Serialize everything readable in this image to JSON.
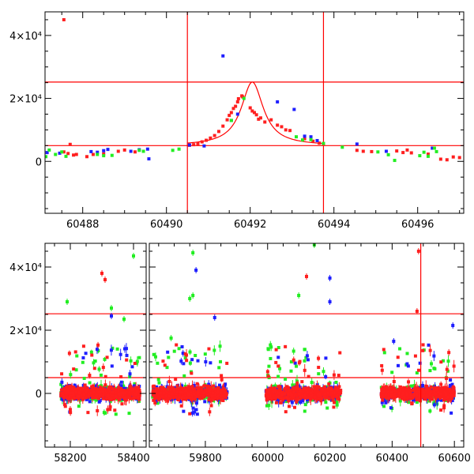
{
  "colors": {
    "red": "#ff1f1f",
    "blue": "#1f1fff",
    "green": "#22ee22",
    "line": "#ff0000"
  },
  "chart_data": [
    {
      "type": "scatter",
      "title": "",
      "xlabel": "",
      "ylabel": "",
      "xlim": [
        60487.1,
        60497.1
      ],
      "ylim": [
        -16500,
        47500
      ],
      "x_ticks": [
        "60488",
        "60490",
        "60492",
        "60494",
        "60496"
      ],
      "y_ticks": [
        "4×10⁴",
        "2×10⁴",
        "0"
      ],
      "y_tick_values": [
        40000,
        20000,
        0
      ],
      "hlines": [
        25200,
        5000
      ],
      "vlines": [
        60490.5,
        60493.75
      ],
      "model_curve": {
        "x0": 60492.05,
        "peak": 25200,
        "base": 5000,
        "width": 0.32
      },
      "series": [
        {
          "name": "",
          "color_key": "red",
          "points": [
            [
              60487.55,
              45000
            ],
            [
              60487.55,
              3000
            ],
            [
              60487.65,
              2500
            ],
            [
              60487.7,
              5400
            ],
            [
              60487.78,
              2000
            ],
            [
              60487.85,
              2200
            ],
            [
              60488.1,
              1500
            ],
            [
              60488.25,
              2200
            ],
            [
              60488.5,
              2400
            ],
            [
              60488.85,
              3200
            ],
            [
              60489.0,
              3600
            ],
            [
              60489.25,
              3000
            ],
            [
              60490.55,
              5100
            ],
            [
              60490.65,
              5300
            ],
            [
              60490.75,
              5600
            ],
            [
              60490.85,
              6200
            ],
            [
              60490.95,
              6700
            ],
            [
              60491.05,
              7400
            ],
            [
              60491.15,
              8200
            ],
            [
              60491.25,
              9500
            ],
            [
              60491.35,
              11200
            ],
            [
              60491.45,
              13200
            ],
            [
              60491.5,
              14600
            ],
            [
              60491.55,
              15500
            ],
            [
              60491.6,
              16800
            ],
            [
              60491.65,
              17500
            ],
            [
              60491.7,
              18900
            ],
            [
              60491.72,
              19900
            ],
            [
              60491.8,
              20800
            ],
            [
              60491.82,
              20500
            ],
            [
              60492.0,
              17000
            ],
            [
              60492.05,
              16000
            ],
            [
              60492.1,
              15500
            ],
            [
              60492.15,
              14800
            ],
            [
              60492.2,
              13400
            ],
            [
              60492.25,
              13800
            ],
            [
              60492.35,
              12500
            ],
            [
              60492.5,
              13200
            ],
            [
              60492.65,
              11500
            ],
            [
              60492.75,
              11000
            ],
            [
              60492.85,
              10000
            ],
            [
              60492.95,
              9800
            ],
            [
              60493.3,
              7200
            ],
            [
              60493.5,
              6400
            ],
            [
              60493.65,
              5800
            ],
            [
              60493.75,
              5400
            ],
            [
              60494.55,
              3500
            ],
            [
              60494.7,
              3200
            ],
            [
              60494.9,
              3100
            ],
            [
              60495.5,
              3300
            ],
            [
              60495.65,
              2800
            ],
            [
              60495.75,
              3600
            ],
            [
              60495.85,
              2700
            ],
            [
              60496.25,
              2300
            ],
            [
              60496.55,
              700
            ],
            [
              60496.7,
              500
            ],
            [
              60496.85,
              1400
            ],
            [
              60497.0,
              1200
            ]
          ]
        },
        {
          "name": "",
          "color_key": "blue",
          "points": [
            [
              60487.15,
              2800
            ],
            [
              60487.45,
              2600
            ],
            [
              60488.2,
              3100
            ],
            [
              60488.35,
              2900
            ],
            [
              60488.5,
              3400
            ],
            [
              60488.6,
              3800
            ],
            [
              60489.15,
              3200
            ],
            [
              60489.35,
              3700
            ],
            [
              60489.55,
              3900
            ],
            [
              60489.58,
              800
            ],
            [
              60490.55,
              5200
            ],
            [
              60490.9,
              4900
            ],
            [
              60491.35,
              33500
            ],
            [
              60491.55,
              13000
            ],
            [
              60491.7,
              15000
            ],
            [
              60492.65,
              18900
            ],
            [
              60493.05,
              16500
            ],
            [
              60493.3,
              8000
            ],
            [
              60493.45,
              7800
            ],
            [
              60493.6,
              6600
            ],
            [
              60494.55,
              5500
            ],
            [
              60495.25,
              3200
            ],
            [
              60496.35,
              4200
            ]
          ]
        },
        {
          "name": "",
          "color_key": "green",
          "points": [
            [
              60487.12,
              1500
            ],
            [
              60487.2,
              3600
            ],
            [
              60487.35,
              2200
            ],
            [
              60487.5,
              3000
            ],
            [
              60487.6,
              1600
            ],
            [
              60488.35,
              2200
            ],
            [
              60488.5,
              1800
            ],
            [
              60488.7,
              1900
            ],
            [
              60489.35,
              3500
            ],
            [
              60489.45,
              3200
            ],
            [
              60490.15,
              3500
            ],
            [
              60490.3,
              3900
            ],
            [
              60491.55,
              13000
            ],
            [
              60491.85,
              20000
            ],
            [
              60493.1,
              7800
            ],
            [
              60493.25,
              6800
            ],
            [
              60493.45,
              6900
            ],
            [
              60493.75,
              5700
            ],
            [
              60494.2,
              4500
            ],
            [
              60495.05,
              3000
            ],
            [
              60495.3,
              2100
            ],
            [
              60495.45,
              300
            ],
            [
              60496.05,
              1800
            ],
            [
              60496.15,
              2900
            ],
            [
              60496.25,
              1600
            ],
            [
              60496.4,
              4200
            ],
            [
              60496.45,
              3100
            ]
          ]
        }
      ]
    },
    {
      "type": "scatter",
      "title": "",
      "xlabel": "",
      "ylabel": "",
      "axis_break": {
        "left": [
          58120,
          58440
        ],
        "right": [
          59620,
          60630
        ]
      },
      "ylim": [
        -17000,
        47500
      ],
      "x_ticks_left": [
        "58200",
        "58400"
      ],
      "x_ticks_left_values": [
        58200,
        58400
      ],
      "x_ticks_right": [
        "59800",
        "60000",
        "60200",
        "60400",
        "60600"
      ],
      "x_ticks_right_values": [
        59800,
        60000,
        60200,
        60400,
        60600
      ],
      "y_ticks": [
        "4×10⁴",
        "2×10⁴",
        "0"
      ],
      "y_tick_values": [
        40000,
        20000,
        0
      ],
      "hlines": [
        25200,
        5000
      ],
      "vlines": [
        60492
      ],
      "seasons": [
        [
          58170,
          58420
        ],
        [
          59630,
          59870
        ],
        [
          59995,
          60235
        ],
        [
          60365,
          60600
        ]
      ],
      "outliers": [
        {
          "x": 58190,
          "y": 29000,
          "color_key": "green"
        },
        {
          "x": 58300,
          "y": 38000,
          "color_key": "red"
        },
        {
          "x": 58310,
          "y": 36000,
          "color_key": "red"
        },
        {
          "x": 58330,
          "y": 27000,
          "color_key": "green"
        },
        {
          "x": 58370,
          "y": 23500,
          "color_key": "green"
        },
        {
          "x": 58400,
          "y": 43500,
          "color_key": "green"
        },
        {
          "x": 58330,
          "y": 24500,
          "color_key": "blue"
        },
        {
          "x": 59760,
          "y": 44500,
          "color_key": "green"
        },
        {
          "x": 59770,
          "y": 39000,
          "color_key": "blue"
        },
        {
          "x": 59760,
          "y": 31000,
          "color_key": "green"
        },
        {
          "x": 59750,
          "y": 30000,
          "color_key": "green"
        },
        {
          "x": 59690,
          "y": 17500,
          "color_key": "green"
        },
        {
          "x": 59830,
          "y": 24000,
          "color_key": "blue"
        },
        {
          "x": 60100,
          "y": 31000,
          "color_key": "green"
        },
        {
          "x": 60125,
          "y": 37000,
          "color_key": "red"
        },
        {
          "x": 60150,
          "y": 47000,
          "color_key": "green"
        },
        {
          "x": 60200,
          "y": 36500,
          "color_key": "blue"
        },
        {
          "x": 60200,
          "y": 29000,
          "color_key": "blue"
        },
        {
          "x": 60485,
          "y": 45000,
          "color_key": "red"
        },
        {
          "x": 60480,
          "y": 26000,
          "color_key": "red"
        },
        {
          "x": 60595,
          "y": 21500,
          "color_key": "blue"
        },
        {
          "x": 60405,
          "y": 16500,
          "color_key": "blue"
        }
      ]
    }
  ]
}
